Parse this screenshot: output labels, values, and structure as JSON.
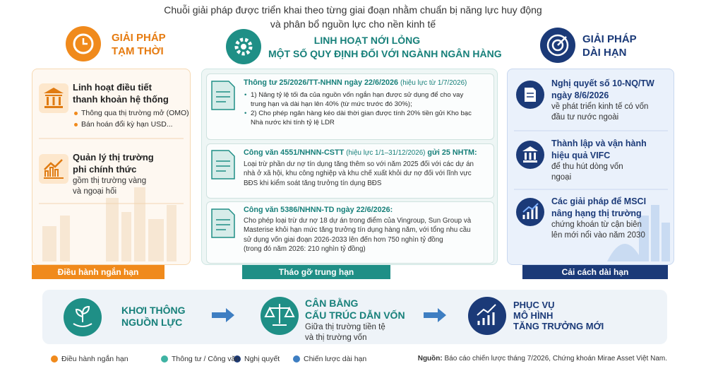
{
  "header": {
    "title_lines": [
      "Chuỗi giải pháp được triển khai theo từng giai đoạn nhằm chuẩn bị năng lực huy động",
      "và phân bổ nguồn lực cho nền kinh tế"
    ]
  },
  "columns": [
    {
      "title_lines": [
        "GIẢI PHÁP",
        "TẠM THỜI"
      ],
      "items": [
        {
          "heading_lines": [
            "Linh hoạt điều tiết",
            "thanh khoản hệ thống"
          ],
          "bullets": [
            "Thông qua thị trường mở (OMO)",
            "Bán hoán đổi kỳ hạn USD..."
          ]
        },
        {
          "heading_lines": [
            "Quản lý thị trường",
            "phi chính thức"
          ],
          "text_lines": [
            "gồm thị trường vàng",
            "và ngoại hối"
          ]
        }
      ],
      "footer": "Điều hành ngắn hạn"
    },
    {
      "title_lines": [
        "LINH HOẠT NỚI LỎNG",
        "MỘT SỐ QUY ĐỊNH ĐỐI VỚI NGÀNH NGÂN HÀNG"
      ],
      "items": [
        {
          "heading": "Thông tư 25/2026/TT-NHNN ngày 22/6/2026",
          "heading_note": "(hiệu lực từ 1/7/2026)",
          "bullets": [
            [
              "1) Nâng tỷ lệ tối đa của nguồn vốn ngắn hạn được sử dụng để cho vay",
              "trung hạn và dài hạn lên 40% (từ mức trước đó 30%);"
            ],
            [
              "2) Cho phép ngân hàng kéo dài thời gian được tính 20% tiền gửi Kho bạc",
              "Nhà nước khi tính tỷ lệ LDR"
            ]
          ]
        },
        {
          "heading": "Công văn 4551/NHNN-CSTT",
          "heading_note": "(hiệu lực 1/1–31/12/2026)",
          "heading_tail": "gửi 25 NHTM:",
          "text_lines": [
            "Loại trừ phần dư nợ tín dụng tăng thêm so với năm 2025 đối với các dự án",
            "nhà ở xã hội, khu công nghiệp và khu chế xuất khỏi dư nợ đối với lĩnh vực",
            "BĐS khi kiểm soát tăng trưởng tín dụng BĐS"
          ]
        },
        {
          "heading": "Công văn 5386/NHNN-TD ngày 22/6/2026:",
          "text_lines": [
            "Cho phép loại trừ dư nợ 18 dự án trong điểm của Vingroup, Sun Group và",
            "Masterise khỏi hạn mức tăng trưởng tín dụng hàng năm, với tổng nhu cầu",
            "sử dụng vốn giai đoạn 2026-2033 lên đến hơn 750 nghìn tỷ đồng",
            "(trong đó năm 2026: 210 nghìn tỷ đồng)"
          ]
        }
      ],
      "footer": "Tháo gỡ trung hạn"
    },
    {
      "title_lines": [
        "GIẢI PHÁP",
        "DÀI HẠN"
      ],
      "items": [
        {
          "heading_lines": [
            "Nghị quyết số 10-NQ/TW",
            "ngày 8/6/2026"
          ],
          "text_lines": [
            "về phát triển kinh tế có vốn",
            "đầu tư nước ngoài"
          ]
        },
        {
          "heading_lines": [
            "Thành lập và vận hành",
            "hiệu quả VIFC"
          ],
          "text_lines": [
            "để thu hút dòng vốn",
            "ngoại"
          ]
        },
        {
          "heading_lines": [
            "Các giải pháp để MSCI",
            "nâng hạng thị trường"
          ],
          "text_lines": [
            "chứng khoán từ cận biên",
            "lên mới nổi vào năm 2030"
          ]
        }
      ],
      "footer": "Cải cách dài hạn"
    }
  ],
  "flow": [
    {
      "title_lines": [
        "KHƠI THÔNG",
        "NGUỒN LỰC"
      ]
    },
    {
      "title_lines": [
        "CÂN BẰNG",
        "CẤU TRÚC DẪN VỐN"
      ],
      "text_lines": [
        "Giữa thị trường tiền tệ",
        "và thị trường vốn"
      ]
    },
    {
      "title_lines": [
        "PHỤC VỤ",
        "MÔ HÌNH",
        "TĂNG TRƯỞNG MỚI"
      ]
    }
  ],
  "legend": [
    "Điều hành ngắn hạn",
    "Thông tư / Công văn",
    "Nghị quyết",
    "Chiến lược dài hạn"
  ],
  "source": {
    "label": "Nguồn:",
    "text": "Báo cáo chiến lược tháng 7/2026, Chứng khoán Mirae Asset Việt Nam."
  }
}
